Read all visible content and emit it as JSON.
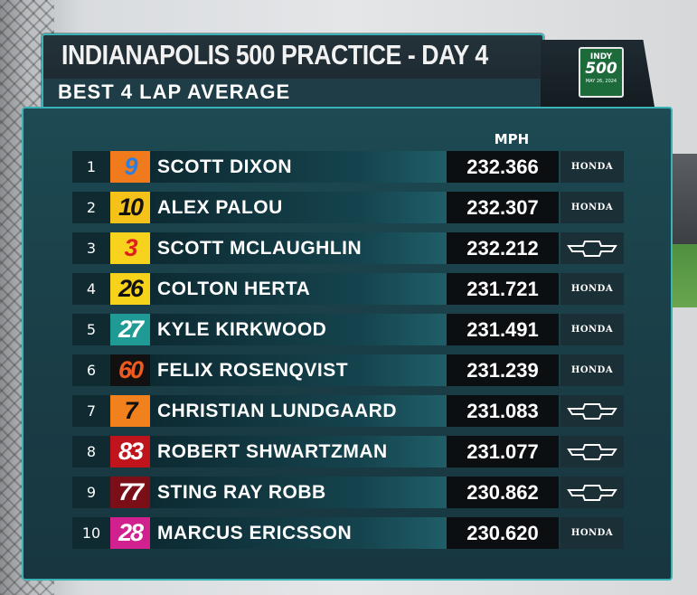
{
  "header": {
    "title": "INDIANAPOLIS 500 PRACTICE - DAY 4",
    "subtitle": "BEST 4 LAP AVERAGE"
  },
  "logo": {
    "line1": "INDY",
    "line2": "500",
    "line3": "MAY 26, 2024"
  },
  "column_header": "MPH",
  "rows": [
    {
      "pos": "1",
      "num": "9",
      "name": "SCOTT DIXON",
      "speed": "232.366",
      "engine": "HONDA",
      "num_color": "#2a7fe0",
      "num_bg": "#f07a1c"
    },
    {
      "pos": "2",
      "num": "10",
      "name": "ALEX PALOU",
      "speed": "232.307",
      "engine": "HONDA",
      "num_color": "#111111",
      "num_bg": "#f5c21a"
    },
    {
      "pos": "3",
      "num": "3",
      "name": "SCOTT MCLAUGHLIN",
      "speed": "232.212",
      "engine": "CHEVROLET",
      "num_color": "#e0201c",
      "num_bg": "#f7d31e"
    },
    {
      "pos": "4",
      "num": "26",
      "name": "COLTON HERTA",
      "speed": "231.721",
      "engine": "HONDA",
      "num_color": "#111111",
      "num_bg": "#f6d21a"
    },
    {
      "pos": "5",
      "num": "27",
      "name": "KYLE KIRKWOOD",
      "speed": "231.491",
      "engine": "HONDA",
      "num_color": "#ffffff",
      "num_bg": "#1f9a95"
    },
    {
      "pos": "6",
      "num": "60",
      "name": "FELIX ROSENQVIST",
      "speed": "231.239",
      "engine": "HONDA",
      "num_color": "#f05a1e",
      "num_bg": "#111111"
    },
    {
      "pos": "7",
      "num": "7",
      "name": "CHRISTIAN LUNDGAARD",
      "speed": "231.083",
      "engine": "CHEVROLET",
      "num_color": "#111111",
      "num_bg": "#f0811c"
    },
    {
      "pos": "8",
      "num": "83",
      "name": "ROBERT SHWARTZMAN",
      "speed": "231.077",
      "engine": "CHEVROLET",
      "num_color": "#ffffff",
      "num_bg": "#c0141c"
    },
    {
      "pos": "9",
      "num": "77",
      "name": "STING RAY ROBB",
      "speed": "230.862",
      "engine": "CHEVROLET",
      "num_color": "#ffffff",
      "num_bg": "#7a0f18"
    },
    {
      "pos": "10",
      "num": "28",
      "name": "MARCUS ERICSSON",
      "speed": "230.620",
      "engine": "HONDA",
      "num_color": "#ffffff",
      "num_bg": "#d0218e"
    }
  ]
}
